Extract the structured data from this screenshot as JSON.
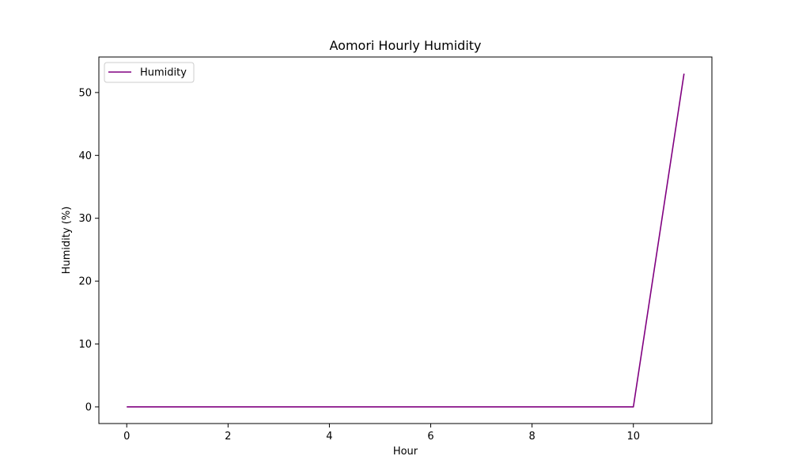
{
  "chart_data": {
    "type": "line",
    "title": "Aomori Hourly Humidity",
    "xlabel": "Hour",
    "ylabel": "Humidity (%)",
    "x": [
      0,
      1,
      2,
      3,
      4,
      5,
      6,
      7,
      8,
      9,
      10,
      11
    ],
    "series": [
      {
        "name": "Humidity",
        "color": "#800080",
        "values": [
          0,
          0,
          0,
          0,
          0,
          0,
          0,
          0,
          0,
          0,
          0,
          53
        ]
      }
    ],
    "xlim": [
      -0.55,
      11.55
    ],
    "ylim": [
      -2.65,
      55.65
    ],
    "xticks": [
      0,
      2,
      4,
      6,
      8,
      10
    ],
    "yticks": [
      0,
      10,
      20,
      30,
      40,
      50
    ],
    "grid": false,
    "legend_position": "upper-left"
  }
}
